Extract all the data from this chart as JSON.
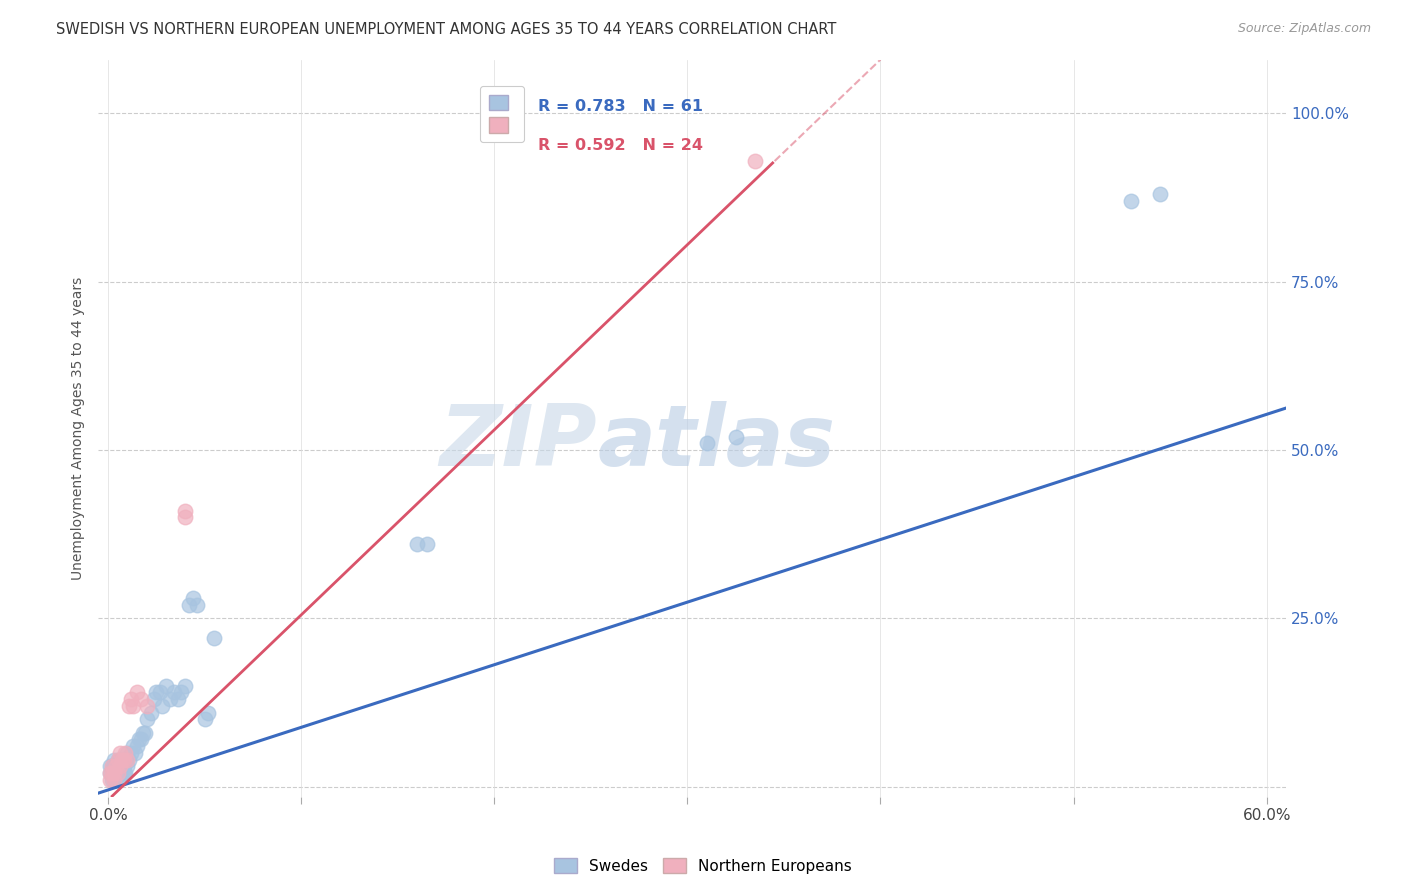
{
  "title": "SWEDISH VS NORTHERN EUROPEAN UNEMPLOYMENT AMONG AGES 35 TO 44 YEARS CORRELATION CHART",
  "source": "Source: ZipAtlas.com",
  "ylabel": "Unemployment Among Ages 35 to 44 years",
  "legend_label_blue": "Swedes",
  "legend_label_pink": "Northern Europeans",
  "R_blue": 0.783,
  "N_blue": 61,
  "R_pink": 0.592,
  "N_pink": 24,
  "blue_color": "#a8c4e0",
  "pink_color": "#f0b0be",
  "blue_line_color": "#3a6abf",
  "pink_line_color": "#d9536a",
  "watermark_zip": "ZIP",
  "watermark_atlas": "atlas",
  "yticks": [
    0.0,
    0.25,
    0.5,
    0.75,
    1.0
  ],
  "ytick_labels_right": [
    "",
    "25.0%",
    "50.0%",
    "75.0%",
    "100.0%"
  ],
  "xlim": [
    -0.005,
    0.61
  ],
  "ylim": [
    -0.015,
    1.08
  ],
  "swedes_x": [
    0.001,
    0.001,
    0.002,
    0.002,
    0.002,
    0.003,
    0.003,
    0.003,
    0.003,
    0.004,
    0.004,
    0.004,
    0.005,
    0.005,
    0.005,
    0.005,
    0.006,
    0.006,
    0.006,
    0.007,
    0.007,
    0.007,
    0.008,
    0.008,
    0.009,
    0.009,
    0.01,
    0.01,
    0.011,
    0.012,
    0.013,
    0.014,
    0.015,
    0.016,
    0.017,
    0.018,
    0.019,
    0.02,
    0.022,
    0.024,
    0.025,
    0.027,
    0.028,
    0.03,
    0.032,
    0.034,
    0.036,
    0.038,
    0.04,
    0.042,
    0.044,
    0.046,
    0.05,
    0.052,
    0.055,
    0.16,
    0.165,
    0.31,
    0.325,
    0.53,
    0.545
  ],
  "swedes_y": [
    0.02,
    0.03,
    0.01,
    0.02,
    0.03,
    0.01,
    0.02,
    0.03,
    0.04,
    0.01,
    0.02,
    0.03,
    0.01,
    0.02,
    0.03,
    0.04,
    0.02,
    0.03,
    0.04,
    0.02,
    0.03,
    0.04,
    0.02,
    0.03,
    0.02,
    0.04,
    0.03,
    0.05,
    0.04,
    0.05,
    0.06,
    0.05,
    0.06,
    0.07,
    0.07,
    0.08,
    0.08,
    0.1,
    0.11,
    0.13,
    0.14,
    0.14,
    0.12,
    0.15,
    0.13,
    0.14,
    0.13,
    0.14,
    0.15,
    0.27,
    0.28,
    0.27,
    0.1,
    0.11,
    0.22,
    0.36,
    0.36,
    0.51,
    0.52,
    0.87,
    0.88
  ],
  "northern_x": [
    0.001,
    0.001,
    0.002,
    0.002,
    0.003,
    0.003,
    0.004,
    0.005,
    0.005,
    0.006,
    0.006,
    0.007,
    0.008,
    0.009,
    0.01,
    0.011,
    0.012,
    0.013,
    0.015,
    0.017,
    0.02,
    0.04,
    0.04,
    0.335
  ],
  "northern_y": [
    0.01,
    0.02,
    0.02,
    0.03,
    0.01,
    0.02,
    0.03,
    0.02,
    0.04,
    0.03,
    0.05,
    0.04,
    0.04,
    0.05,
    0.04,
    0.12,
    0.13,
    0.12,
    0.14,
    0.13,
    0.12,
    0.4,
    0.41,
    0.93
  ],
  "blue_reg_slope": 0.93,
  "blue_reg_intercept": -0.005,
  "pink_reg_slope": 2.75,
  "pink_reg_intercept": -0.02
}
